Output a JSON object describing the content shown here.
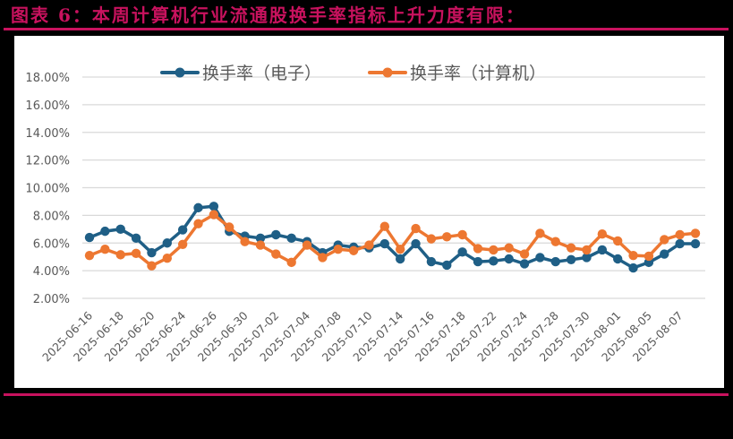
{
  "header": {
    "title": "图表 6：本周计算机行业流通股换手率指标上升力度有限：",
    "title_color": "#C8125E",
    "rule_color": "#C8125E"
  },
  "colors": {
    "background": "#000000",
    "panel": "#FFFFFF",
    "grid": "#D9D9D9",
    "axis_text": "#595959"
  },
  "chart_data": {
    "type": "line",
    "title": "",
    "xlabel": "",
    "ylabel": "",
    "ylim": [
      2,
      18
    ],
    "y_ticks": [
      "2.00%",
      "4.00%",
      "6.00%",
      "8.00%",
      "10.00%",
      "12.00%",
      "14.00%",
      "16.00%",
      "18.00%"
    ],
    "y_tick_values": [
      2,
      4,
      6,
      8,
      10,
      12,
      14,
      16,
      18
    ],
    "grid": true,
    "legend_position": "top",
    "x": [
      "2025-06-16",
      "2025-06-17",
      "2025-06-18",
      "2025-06-19",
      "2025-06-20",
      "2025-06-23",
      "2025-06-24",
      "2025-06-25",
      "2025-06-26",
      "2025-06-27",
      "2025-06-30",
      "2025-07-01",
      "2025-07-02",
      "2025-07-03",
      "2025-07-04",
      "2025-07-07",
      "2025-07-08",
      "2025-07-09",
      "2025-07-10",
      "2025-07-11",
      "2025-07-14",
      "2025-07-15",
      "2025-07-16",
      "2025-07-17",
      "2025-07-18",
      "2025-07-21",
      "2025-07-22",
      "2025-07-23",
      "2025-07-24",
      "2025-07-25",
      "2025-07-28",
      "2025-07-29",
      "2025-07-30",
      "2025-07-31",
      "2025-08-01",
      "2025-08-04",
      "2025-08-05",
      "2025-08-06",
      "2025-08-07",
      "2025-08-08"
    ],
    "x_tick_labels": [
      "2025-06-16",
      "2025-06-18",
      "2025-06-20",
      "2025-06-24",
      "2025-06-26",
      "2025-06-30",
      "2025-07-02",
      "2025-07-04",
      "2025-07-08",
      "2025-07-10",
      "2025-07-14",
      "2025-07-16",
      "2025-07-18",
      "2025-07-22",
      "2025-07-24",
      "2025-07-28",
      "2025-07-30",
      "2025-08-01",
      "2025-08-05",
      "2025-08-07"
    ],
    "series": [
      {
        "name": "换手率（电子）",
        "color": "#1F5F86",
        "values": [
          6.4,
          6.85,
          7.0,
          6.35,
          5.3,
          6.0,
          6.95,
          8.55,
          8.65,
          6.85,
          6.5,
          6.35,
          6.6,
          6.35,
          6.1,
          5.3,
          5.85,
          5.7,
          5.65,
          5.95,
          4.85,
          5.95,
          4.65,
          4.4,
          5.35,
          4.65,
          4.7,
          4.85,
          4.5,
          4.95,
          4.65,
          4.8,
          4.95,
          5.5,
          4.85,
          4.2,
          4.6,
          5.2,
          5.95,
          5.95
        ]
      },
      {
        "name": "换手率（计算机）",
        "color": "#ED7731",
        "values": [
          5.1,
          5.55,
          5.15,
          5.25,
          4.35,
          4.9,
          5.9,
          7.4,
          8.05,
          7.15,
          6.1,
          5.85,
          5.2,
          4.6,
          5.85,
          4.95,
          5.55,
          5.45,
          5.85,
          7.2,
          5.55,
          7.05,
          6.3,
          6.45,
          6.6,
          5.6,
          5.5,
          5.65,
          5.2,
          6.7,
          6.1,
          5.65,
          5.5,
          6.65,
          6.15,
          5.1,
          5.05,
          6.25,
          6.6,
          6.7
        ]
      }
    ]
  }
}
